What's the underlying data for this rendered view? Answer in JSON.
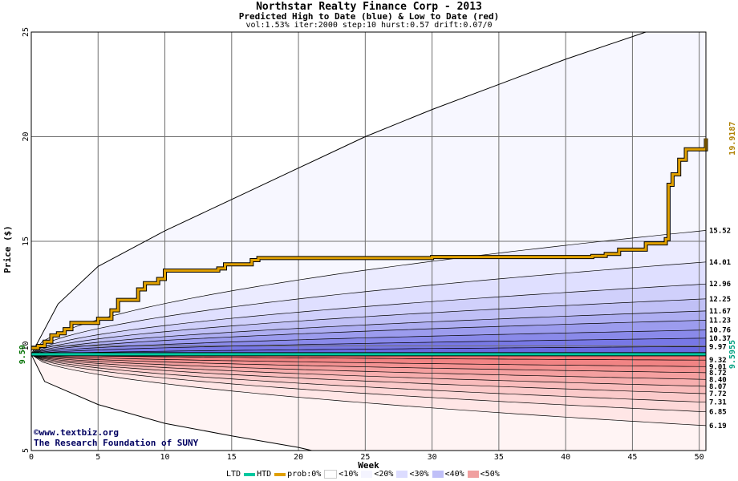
{
  "titles": {
    "main": "Northstar Realty Finance Corp - 2013",
    "sub": "Predicted High to Date (blue) &  Low to Date (red)",
    "params": "vol:1.53% iter:2000 step:10 hurst:0.57 drift:0.07/0"
  },
  "credits": {
    "line1": "©www.textbiz.org",
    "line2": "The Research Foundation of SUNY"
  },
  "legend": {
    "ltd": "LTD",
    "htd": "HTD",
    "prob": "prob:0%",
    "p10": "<10%",
    "p20": "<20%",
    "p30": "<30%",
    "p40": "<40%",
    "p50": "<50%",
    "colors": {
      "ltd": "#00c8a0",
      "htd": "#e0a000",
      "p0": "#ffffff",
      "p10": "#f4f4ff",
      "p20": "#dcdcff",
      "p30": "#c0c0f8",
      "p40": "#f0a0a0",
      "p50": "#8080f0"
    }
  },
  "chart_data": {
    "type": "area",
    "xlabel": "Week",
    "ylabel": "Price ($)",
    "xlim": [
      0,
      50.5
    ],
    "ylim": [
      5,
      25
    ],
    "x_ticks": [
      0,
      5,
      10,
      15,
      20,
      25,
      30,
      35,
      40,
      45,
      50
    ],
    "y_ticks": [
      5,
      10,
      15,
      20,
      25
    ],
    "start_price": 9.59,
    "start_label": "9.59",
    "current_low": 9.5955,
    "current_low_label": "9.5955",
    "current_high": 19.9187,
    "current_high_label": "19.9187",
    "high_quantiles": [
      15.52,
      14.01,
      12.96,
      12.25,
      11.67,
      11.23,
      10.76,
      10.37,
      9.97
    ],
    "high_quantile_labels": [
      "15.52",
      "14.01",
      "12.96",
      "12.25",
      "11.67",
      "11.23",
      "10.76",
      "10.37",
      "9.97"
    ],
    "high_outer_path": {
      "x": [
        0,
        2,
        5,
        10,
        15,
        20,
        25,
        30,
        35,
        40,
        46
      ],
      "y": [
        9.59,
        12.0,
        13.8,
        15.5,
        17.0,
        18.5,
        20.0,
        21.3,
        22.5,
        23.7,
        25.0
      ]
    },
    "low_quantiles": [
      9.32,
      9.01,
      8.72,
      8.4,
      8.07,
      7.72,
      7.31,
      6.85,
      6.19
    ],
    "low_quantile_labels": [
      "9.32",
      "9.01",
      "8.72",
      "8.40",
      "8.07",
      "7.72",
      "7.31",
      "6.85",
      "6.19"
    ],
    "low_outer_path": {
      "x": [
        0,
        1,
        5,
        10,
        15,
        20,
        21
      ],
      "y": [
        9.59,
        8.3,
        7.2,
        6.3,
        5.7,
        5.15,
        5.0
      ]
    },
    "htd_series": {
      "name": "HTD",
      "x": [
        0,
        0.5,
        1,
        1.5,
        2,
        2.5,
        3,
        5,
        6,
        6.5,
        8,
        8.5,
        9.5,
        10,
        14,
        14.5,
        16.5,
        17,
        30,
        42,
        43,
        44,
        46,
        47.5,
        47.7,
        48,
        48.5,
        49,
        50.5
      ],
      "y": [
        9.9,
        10.0,
        10.2,
        10.5,
        10.6,
        10.8,
        11.1,
        11.3,
        11.7,
        12.2,
        12.7,
        13.0,
        13.2,
        13.6,
        13.7,
        13.9,
        14.1,
        14.2,
        14.25,
        14.3,
        14.4,
        14.6,
        14.9,
        15.1,
        17.7,
        18.2,
        18.9,
        19.4,
        19.92
      ]
    },
    "ltd_series": {
      "name": "LTD",
      "x": [
        0,
        50.5
      ],
      "y": [
        9.6,
        9.6
      ]
    }
  }
}
